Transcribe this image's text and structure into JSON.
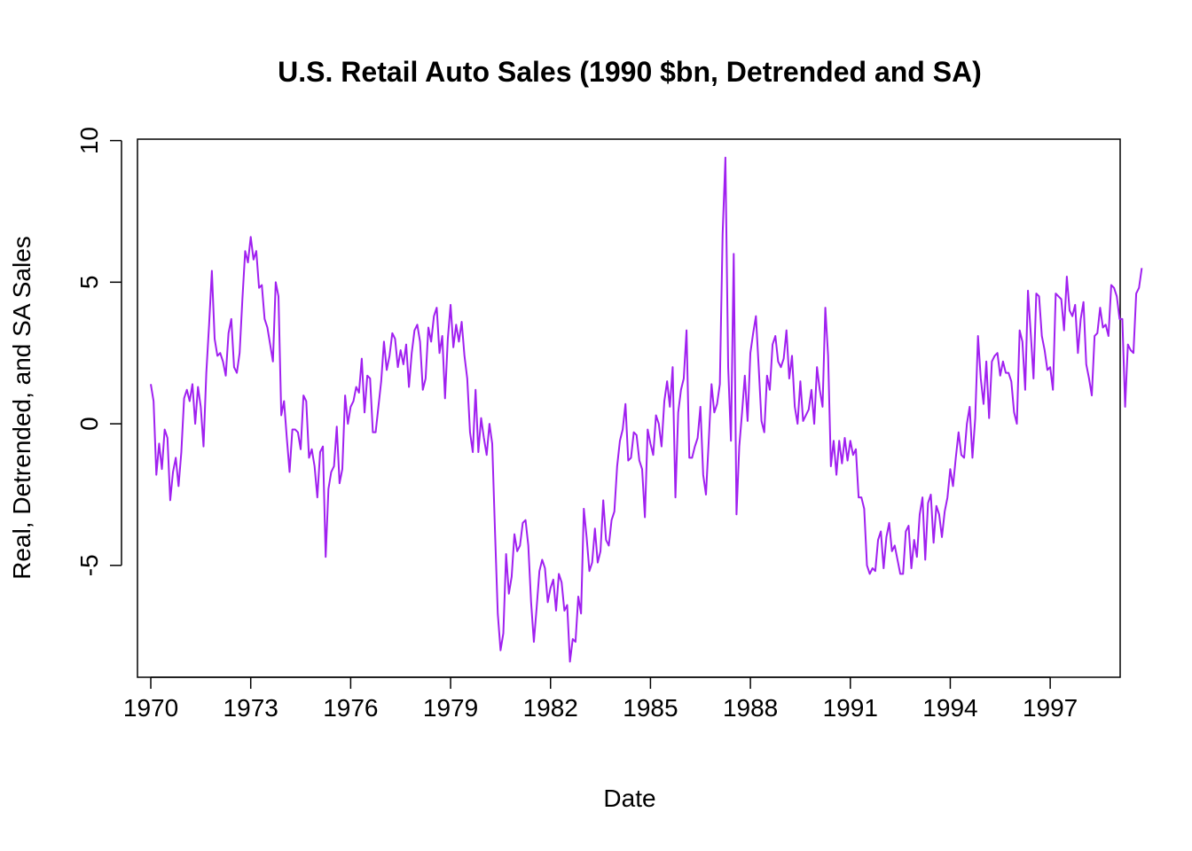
{
  "chart_data": {
    "type": "line",
    "title": "U.S. Retail Auto Sales (1990 $bn, Detrended and SA)",
    "xlabel": "Date",
    "ylabel": "Real, Detrended, and SA Sales",
    "xlim": [
      1969.6,
      1999.1
    ],
    "ylim": [
      -8.95,
      10.05
    ],
    "x_ticks": [
      1970,
      1973,
      1976,
      1979,
      1982,
      1985,
      1988,
      1991,
      1994,
      1997
    ],
    "x_tick_labels": [
      "1970",
      "1973",
      "1976",
      "1979",
      "1982",
      "1985",
      "1988",
      "1991",
      "1994",
      "1997"
    ],
    "y_ticks": [
      -5,
      0,
      5,
      10
    ],
    "y_tick_labels": [
      "-5",
      "0",
      "5",
      "10"
    ],
    "grid": false,
    "legend": "none",
    "line_color": "#A020F0",
    "series": [
      {
        "start": 1970.0,
        "step": 0.08333,
        "values": [
          1.4,
          0.8,
          -1.8,
          -0.7,
          -1.6,
          -0.2,
          -0.5,
          -2.7,
          -1.7,
          -1.2,
          -2.2,
          -1.0,
          0.9,
          1.2,
          0.8,
          1.4,
          0.0,
          1.3,
          0.6,
          -0.8,
          1.8,
          3.5,
          5.4,
          3.0,
          2.4,
          2.5,
          2.2,
          1.7,
          3.2,
          3.7,
          2.0,
          1.8,
          2.5,
          4.4,
          6.1,
          5.7,
          6.6,
          5.8,
          6.1,
          4.8,
          4.9,
          3.7,
          3.4,
          2.8,
          2.2,
          5.0,
          4.5,
          0.3,
          0.8,
          -0.5,
          -1.7,
          -0.2,
          -0.2,
          -0.3,
          -0.9,
          1.0,
          0.8,
          -1.2,
          -0.9,
          -1.5,
          -2.6,
          -1.0,
          -0.8,
          -4.7,
          -2.3,
          -1.7,
          -1.5,
          -0.1,
          -2.1,
          -1.6,
          1.0,
          0.0,
          0.6,
          0.8,
          1.3,
          1.1,
          2.3,
          0.4,
          1.7,
          1.6,
          -0.3,
          -0.3,
          0.6,
          1.5,
          2.9,
          1.9,
          2.4,
          3.2,
          3.0,
          2.0,
          2.6,
          2.1,
          2.8,
          1.3,
          2.5,
          3.3,
          3.5,
          2.9,
          1.2,
          1.6,
          3.4,
          2.9,
          3.8,
          4.1,
          2.5,
          3.1,
          0.9,
          3.0,
          4.2,
          2.7,
          3.5,
          2.9,
          3.6,
          2.4,
          1.6,
          -0.3,
          -1.0,
          1.2,
          -1.0,
          0.2,
          -0.5,
          -1.1,
          0.0,
          -0.7,
          -3.8,
          -6.7,
          -8.0,
          -7.4,
          -4.6,
          -6.0,
          -5.4,
          -3.9,
          -4.5,
          -4.3,
          -3.5,
          -3.4,
          -4.3,
          -6.3,
          -7.7,
          -6.5,
          -5.2,
          -4.8,
          -5.1,
          -6.3,
          -5.8,
          -5.5,
          -6.6,
          -5.3,
          -5.6,
          -6.6,
          -6.4,
          -8.4,
          -7.6,
          -7.7,
          -6.1,
          -6.7,
          -3.0,
          -4.0,
          -5.2,
          -4.9,
          -3.7,
          -4.9,
          -4.5,
          -2.7,
          -4.1,
          -4.3,
          -3.4,
          -3.1,
          -1.5,
          -0.6,
          -0.2,
          0.7,
          -1.3,
          -1.2,
          -0.3,
          -0.4,
          -1.3,
          -1.6,
          -3.3,
          -0.2,
          -0.7,
          -1.1,
          0.3,
          0.0,
          -0.8,
          0.8,
          1.5,
          0.6,
          2.0,
          -2.6,
          0.4,
          1.2,
          1.6,
          3.3,
          -1.2,
          -1.2,
          -0.8,
          -0.5,
          0.6,
          -1.8,
          -2.5,
          -0.6,
          1.4,
          0.4,
          0.7,
          1.4,
          6.7,
          9.4,
          2.0,
          -0.6,
          6.0,
          -3.2,
          -0.8,
          0.4,
          1.7,
          0.1,
          2.5,
          3.2,
          3.8,
          2.0,
          0.1,
          -0.3,
          1.7,
          1.2,
          2.8,
          3.1,
          2.2,
          2.0,
          2.3,
          3.3,
          1.6,
          2.4,
          0.6,
          0.0,
          1.5,
          0.1,
          0.3,
          0.5,
          1.2,
          0.0,
          2.0,
          1.2,
          0.6,
          4.1,
          2.4,
          -1.5,
          -0.6,
          -1.8,
          -0.6,
          -1.4,
          -0.5,
          -1.3,
          -0.6,
          -1.1,
          -0.9,
          -2.6,
          -2.6,
          -3.0,
          -5.0,
          -5.3,
          -5.1,
          -5.2,
          -4.1,
          -3.8,
          -5.1,
          -4.0,
          -3.5,
          -4.5,
          -4.3,
          -4.8,
          -5.3,
          -5.3,
          -3.8,
          -3.6,
          -5.1,
          -4.1,
          -4.7,
          -3.2,
          -2.6,
          -4.8,
          -2.8,
          -2.5,
          -4.2,
          -2.9,
          -3.2,
          -4.0,
          -3.1,
          -2.6,
          -1.6,
          -2.2,
          -1.2,
          -0.3,
          -1.1,
          -1.2,
          0.0,
          0.6,
          -1.2,
          0.2,
          3.1,
          1.6,
          0.7,
          2.2,
          0.2,
          2.2,
          2.4,
          2.5,
          1.7,
          2.2,
          1.8,
          1.8,
          1.5,
          0.4,
          0.0,
          3.3,
          2.9,
          1.2,
          4.7,
          3.2,
          1.6,
          4.6,
          4.5,
          3.1,
          2.6,
          1.9,
          2.0,
          1.2,
          4.6,
          4.5,
          4.4,
          3.3,
          5.2,
          4.0,
          3.8,
          4.2,
          2.5,
          3.7,
          4.3,
          2.1,
          1.6,
          1.0,
          3.1,
          3.2,
          4.1,
          3.4,
          3.5,
          3.1,
          4.9,
          4.8,
          4.5,
          3.7,
          3.7,
          0.6,
          2.8,
          2.6,
          2.5,
          4.6,
          4.8,
          5.5
        ]
      }
    ]
  }
}
